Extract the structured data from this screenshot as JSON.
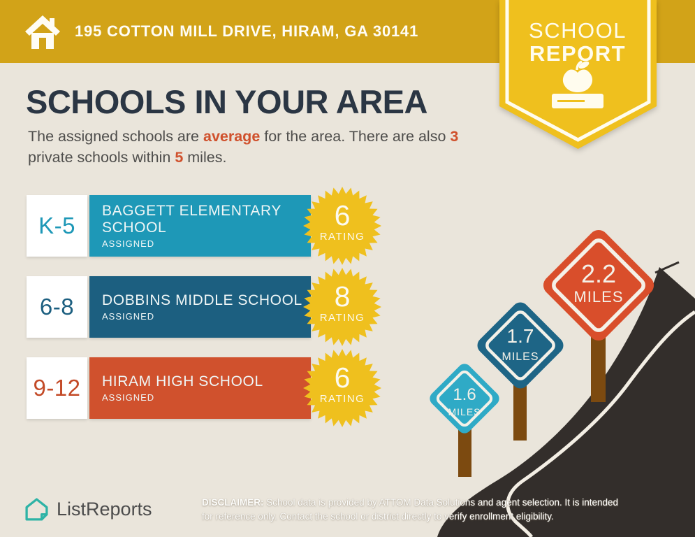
{
  "header": {
    "address": "195 COTTON MILL DRIVE, HIRAM, GA 30141"
  },
  "badge": {
    "line1": "SCHOOL",
    "line2": "REPORT"
  },
  "title": "SCHOOLS IN YOUR AREA",
  "subtitle": {
    "s1": "The assigned schools are ",
    "h1": "average",
    "s2": " for the area. There are also ",
    "h2": "3",
    "s3": " private schools within ",
    "h3": "5",
    "s4": " miles."
  },
  "schools": [
    {
      "grades": "K-5",
      "name": "BAGGETT ELEMENTARY SCHOOL",
      "status": "ASSIGNED",
      "rating": "6",
      "rating_label": "RATING",
      "bar_color": "#1E98B7"
    },
    {
      "grades": "6-8",
      "name": "DOBBINS MIDDLE SCHOOL",
      "status": "ASSIGNED",
      "rating": "8",
      "rating_label": "RATING",
      "bar_color": "#1C5F80"
    },
    {
      "grades": "9-12",
      "name": "HIRAM HIGH SCHOOL",
      "status": "ASSIGNED",
      "rating": "6",
      "rating_label": "RATING",
      "bar_color": "#D0512D"
    }
  ],
  "road_signs": [
    {
      "distance": "1.6",
      "unit": "MILES",
      "color": "#2FAAC6"
    },
    {
      "distance": "1.7",
      "unit": "MILES",
      "color": "#1E6586"
    },
    {
      "distance": "2.2",
      "unit": "MILES",
      "color": "#D94E2B"
    }
  ],
  "footer": {
    "brand": "ListReports",
    "disclaimer_label": "DISCLAIMER:",
    "disclaimer_line1": " School data is provided by ATTOM Data Solutions and agent selection. It is intended",
    "disclaimer_line2": "for reference only. Contact the school or district directly to verify enrollment eligibility."
  },
  "colors": {
    "background": "#EAE5DB",
    "header_gold": "#D2A318",
    "badge_yellow": "#EFC01E",
    "title_navy": "#2B3644",
    "accent_orange": "#D0512D",
    "elementary_teal": "#1E98B7",
    "middle_blue": "#1C5F80",
    "high_red": "#D0512D",
    "road_charcoal": "#332E2B",
    "post_brown": "#7C4A10",
    "logo_teal": "#2DB3A6"
  }
}
